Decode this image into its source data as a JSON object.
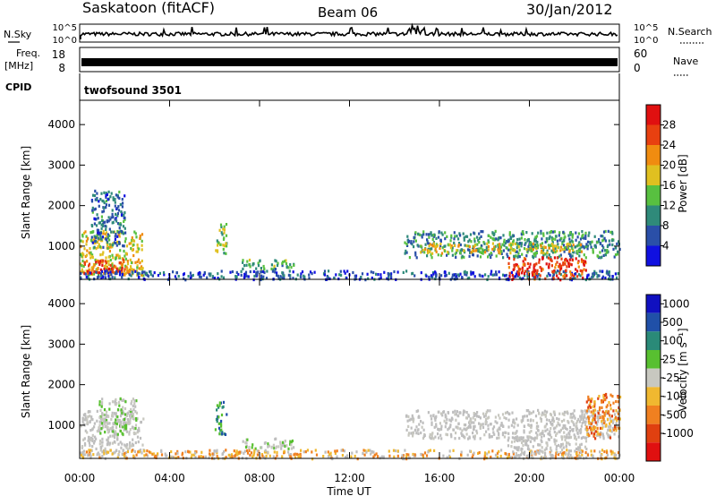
{
  "header": {
    "station": "Saskatoon (fitACF)",
    "beam": "Beam 06",
    "date": "30/Jan/2012"
  },
  "strips": {
    "nsky_label": "N.Sky",
    "nsky_ticks": [
      "10^5",
      "10^0"
    ],
    "nsearch_label": "N.Search",
    "nsearch_ticks": [
      "10^5",
      "10^0"
    ],
    "freq_label": "Freq.",
    "freq_unit": "[MHz]",
    "freq_ticks": [
      "18",
      "8"
    ],
    "nave_label": "Nave",
    "nave_ticks": [
      "60",
      "0"
    ],
    "cpid_label": "CPID",
    "cpid_value": "twofsound 3501"
  },
  "colors": {
    "power_scale": [
      "#1010e0",
      "#2a4fa8",
      "#2f8a7a",
      "#58c040",
      "#e0c020",
      "#f08c10",
      "#e84010",
      "#e01010"
    ],
    "velocity_scale": [
      "#e01010",
      "#e04010",
      "#f08020",
      "#f0b830",
      "#c8c8c0",
      "#58c030",
      "#2a8a78",
      "#2050a8",
      "#1010c0"
    ],
    "ground_scatter": "#bebebe"
  },
  "chart_data": [
    {
      "type": "heatmap",
      "name": "power",
      "ylabel": "Slant Range [km]",
      "xlabel": "",
      "xticks": [
        "00:00",
        "04:00",
        "08:00",
        "12:00",
        "16:00",
        "20:00",
        "00:00"
      ],
      "yticks": [
        "1000",
        "2000",
        "3000",
        "4000"
      ],
      "xlim_hours": [
        0,
        24
      ],
      "ylim_km": [
        180,
        4600
      ],
      "colorbar_label": "Power [dB]",
      "colorbar_ticks": [
        "28",
        "24",
        "20",
        "16",
        "12",
        "8",
        "4"
      ],
      "colorbar_range_db": [
        0,
        32
      ],
      "regions": [
        {
          "t0": 0.0,
          "t1": 2.8,
          "r0": 300,
          "r1": 1400,
          "level": 18
        },
        {
          "t0": 0.0,
          "t1": 2.2,
          "r0": 350,
          "r1": 700,
          "level": 26
        },
        {
          "t0": 0.5,
          "t1": 2.0,
          "r0": 1000,
          "r1": 2400,
          "level": 8
        },
        {
          "t0": 6.0,
          "t1": 6.5,
          "r0": 800,
          "r1": 1600,
          "level": 14
        },
        {
          "t0": 7.2,
          "t1": 9.5,
          "r0": 450,
          "r1": 700,
          "level": 12
        },
        {
          "t0": 0.0,
          "t1": 24.0,
          "r0": 200,
          "r1": 420,
          "level": 6
        },
        {
          "t0": 14.4,
          "t1": 24.0,
          "r0": 750,
          "r1": 1400,
          "level": 10
        },
        {
          "t0": 15.0,
          "t1": 22.5,
          "r0": 850,
          "r1": 1100,
          "level": 18
        },
        {
          "t0": 19.0,
          "t1": 22.5,
          "r0": 200,
          "r1": 750,
          "level": 27
        }
      ]
    },
    {
      "type": "heatmap",
      "name": "velocity",
      "ylabel": "Slant Range [km]",
      "xlabel": "Time UT",
      "xticks": [
        "00:00",
        "04:00",
        "08:00",
        "12:00",
        "16:00",
        "20:00",
        "00:00"
      ],
      "yticks": [
        "1000",
        "2000",
        "3000",
        "4000"
      ],
      "xlim_hours": [
        0,
        24
      ],
      "ylim_km": [
        180,
        4600
      ],
      "colorbar_label": "Velocity [m s⁻¹]",
      "colorbar_ticks": [
        "1000",
        "500",
        "100",
        "25",
        "-25",
        "-100",
        "-500",
        "-1000"
      ],
      "regions": [
        {
          "t0": 0.0,
          "t1": 2.8,
          "r0": 300,
          "r1": 1400,
          "class": "ground"
        },
        {
          "t0": 0.8,
          "t1": 2.5,
          "r0": 800,
          "r1": 1700,
          "class": "positive_low"
        },
        {
          "t0": 6.0,
          "t1": 6.5,
          "r0": 800,
          "r1": 1600,
          "class": "positive_mid"
        },
        {
          "t0": 7.2,
          "t1": 9.5,
          "r0": 450,
          "r1": 700,
          "class": "positive_low"
        },
        {
          "t0": 0.0,
          "t1": 24.0,
          "r0": 200,
          "r1": 420,
          "class": "negative_low"
        },
        {
          "t0": 14.4,
          "t1": 24.0,
          "r0": 700,
          "r1": 1400,
          "class": "ground"
        },
        {
          "t0": 19.0,
          "t1": 22.5,
          "r0": 200,
          "r1": 750,
          "class": "ground"
        },
        {
          "t0": 22.5,
          "t1": 24.0,
          "r0": 700,
          "r1": 1800,
          "class": "negative_mid"
        }
      ]
    }
  ]
}
